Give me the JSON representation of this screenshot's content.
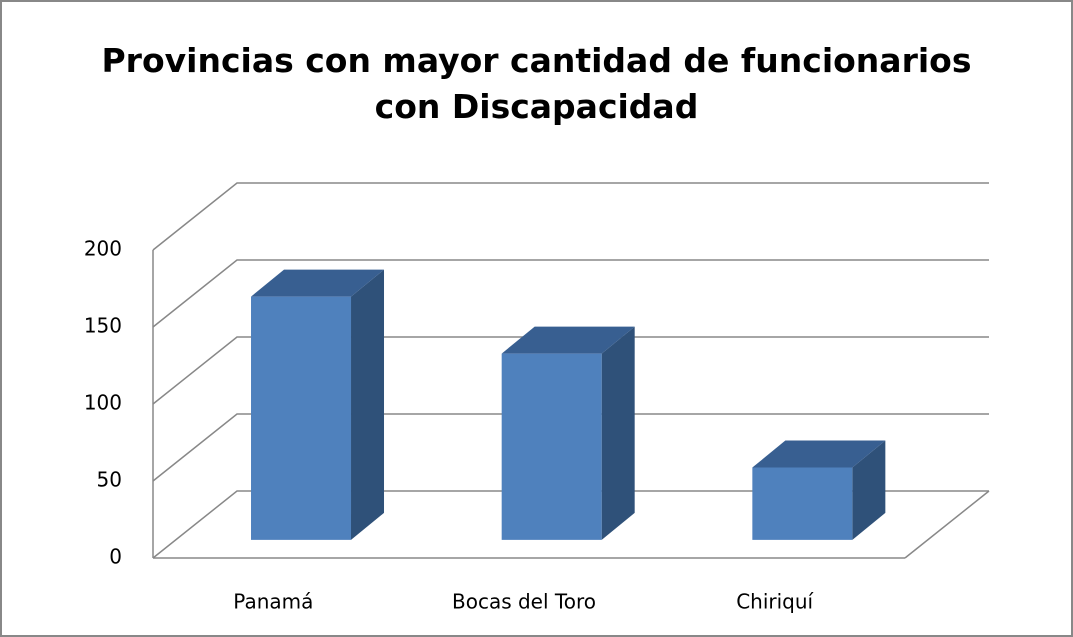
{
  "chart_data": {
    "type": "bar3d",
    "title": "Provincias con mayor cantidad de funcionarios con Discapacidad",
    "categories": [
      "Panamá",
      "Bocas del Toro",
      "Chiriquí"
    ],
    "values": [
      158,
      121,
      47
    ],
    "color": "#4f81bd",
    "ylim": [
      0,
      200
    ],
    "yticks": [
      0,
      50,
      100,
      150,
      200
    ],
    "grid": true
  }
}
